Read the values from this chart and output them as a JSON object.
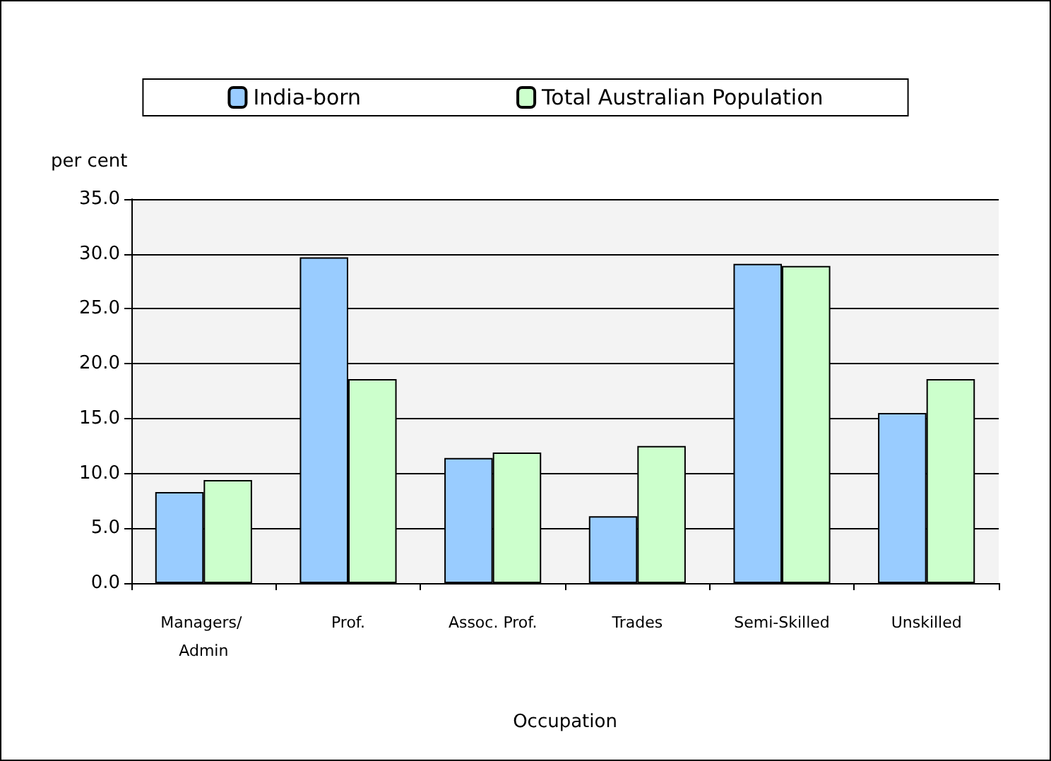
{
  "chart_data": {
    "type": "bar",
    "ylabel": "per cent",
    "xlabel": "Occupation",
    "categories": [
      "Managers/ Admin",
      "Prof.",
      "Assoc. Prof.",
      "Trades",
      "Semi-Skilled",
      "Unskilled"
    ],
    "series": [
      {
        "name": "India-born",
        "color": "#99ccff",
        "values": [
          8.3,
          29.7,
          11.4,
          6.1,
          29.1,
          15.5
        ]
      },
      {
        "name": "Total Australian Population",
        "color": "#ccffcc",
        "values": [
          9.4,
          18.6,
          11.9,
          12.5,
          28.9,
          18.6
        ]
      }
    ],
    "ylim": [
      0,
      35
    ],
    "yticks": [
      {
        "value": 0,
        "label": "0.0"
      },
      {
        "value": 5,
        "label": "5.0"
      },
      {
        "value": 10,
        "label": "10.0"
      },
      {
        "value": 15,
        "label": "15.0"
      },
      {
        "value": 20,
        "label": "20.0"
      },
      {
        "value": 25,
        "label": "25.0"
      },
      {
        "value": 30,
        "label": "30.0"
      },
      {
        "value": 35,
        "label": "35.0"
      }
    ],
    "grid": "y",
    "legend": "top"
  }
}
